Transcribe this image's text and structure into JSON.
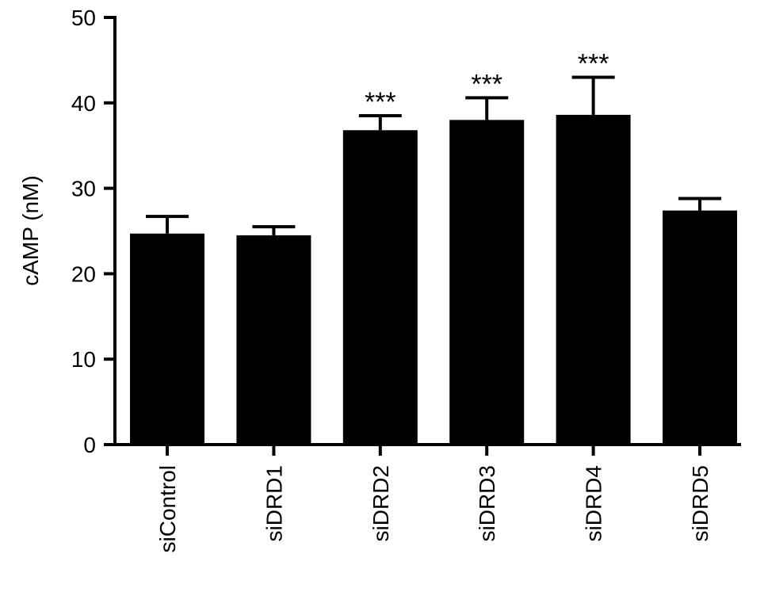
{
  "chart_data": {
    "type": "bar",
    "title": "",
    "xlabel": "",
    "ylabel": "cAMP (nM)",
    "ylim": [
      0,
      50
    ],
    "yticks": [
      0,
      10,
      20,
      30,
      40,
      50
    ],
    "grid": false,
    "legend": "none",
    "categories": [
      "siControl",
      "siDRD1",
      "siDRD2",
      "siDRD3",
      "siDRD4",
      "siDRD5"
    ],
    "values": [
      24.7,
      24.5,
      36.8,
      38.0,
      38.6,
      27.4
    ],
    "error_upper": [
      2.0,
      1.0,
      1.7,
      2.6,
      4.4,
      1.4
    ],
    "significance": [
      "",
      "",
      "***",
      "***",
      "***",
      ""
    ],
    "bar_color": "#000000"
  }
}
